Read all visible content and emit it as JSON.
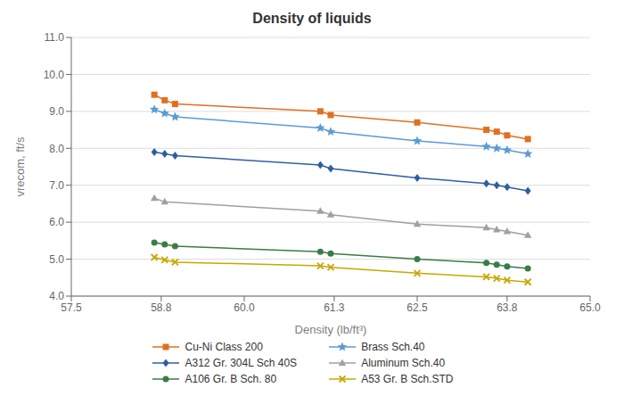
{
  "chart_data": {
    "type": "line",
    "title": "Density of liquids",
    "xlabel": "Density (lb/ft³)",
    "ylabel": "vrecom, ft/s",
    "xlim": [
      57.5,
      65.0
    ],
    "ylim": [
      4.0,
      11.0
    ],
    "xticks": [
      57.5,
      58.8,
      {
        "value": 60.0,
        "label": "60.0"
      },
      61.3,
      62.5,
      63.8,
      {
        "value": 65.0,
        "label": "65.0"
      }
    ],
    "yticks": [
      {
        "value": 4.0,
        "label": "4.0"
      },
      {
        "value": 5.0,
        "label": "5.0"
      },
      {
        "value": 6.0,
        "label": "6.0"
      },
      {
        "value": 7.0,
        "label": "7.0"
      },
      {
        "value": 8.0,
        "label": "8.0"
      },
      {
        "value": 9.0,
        "label": "9.0"
      },
      {
        "value": 10.0,
        "label": "10.0"
      },
      {
        "value": 11.0,
        "label": "11.0"
      }
    ],
    "grid": "y",
    "series": [
      {
        "name": "Cu-Ni Class 200",
        "color": "#E07020",
        "marker": "square",
        "line_style": "solid",
        "x": [
          58.7,
          58.85,
          59.0,
          61.1,
          61.25,
          62.5,
          63.5,
          63.65,
          63.8,
          64.1
        ],
        "values": [
          9.45,
          9.3,
          9.2,
          9.0,
          8.9,
          8.7,
          8.5,
          8.45,
          8.35,
          8.25
        ]
      },
      {
        "name": "Brass Sch.40",
        "color": "#5B9BD5",
        "marker": "star",
        "line_style": "solid",
        "x": [
          58.7,
          58.85,
          59.0,
          61.1,
          61.25,
          62.5,
          63.5,
          63.65,
          63.8,
          64.1
        ],
        "values": [
          9.05,
          8.95,
          8.85,
          8.55,
          8.45,
          8.2,
          8.05,
          8.0,
          7.95,
          7.85
        ]
      },
      {
        "name": "A312 Gr. 304L Sch 40S",
        "color": "#2E5FA3",
        "marker": "diamond",
        "line_style": "solid",
        "x": [
          58.7,
          58.85,
          59.0,
          61.1,
          61.25,
          62.5,
          63.5,
          63.65,
          63.8,
          64.1
        ],
        "values": [
          7.9,
          7.85,
          7.8,
          7.55,
          7.45,
          7.2,
          7.05,
          7.0,
          6.95,
          6.85
        ]
      },
      {
        "name": "Aluminum Sch.40",
        "color": "#A0A0A0",
        "marker": "triangle",
        "line_style": "solid",
        "x": [
          58.7,
          58.85,
          61.1,
          61.25,
          62.5,
          63.5,
          63.65,
          63.8,
          64.1
        ],
        "values": [
          6.65,
          6.55,
          6.3,
          6.2,
          5.95,
          5.85,
          5.8,
          5.75,
          5.65
        ]
      },
      {
        "name": "A106 Gr. B Sch. 80",
        "color": "#3A7D44",
        "marker": "circle",
        "line_style": "solid",
        "x": [
          58.7,
          58.85,
          59.0,
          61.1,
          61.25,
          62.5,
          63.5,
          63.65,
          63.8,
          64.1
        ],
        "values": [
          5.45,
          5.4,
          5.35,
          5.2,
          5.15,
          5.0,
          4.9,
          4.85,
          4.8,
          4.75
        ]
      },
      {
        "name": "A53 Gr. B Sch.STD",
        "color": "#C8A800",
        "marker": "x",
        "line_style": "solid",
        "x": [
          58.7,
          58.85,
          59.0,
          61.1,
          61.25,
          62.5,
          63.5,
          63.65,
          63.8,
          64.1
        ],
        "values": [
          5.05,
          4.98,
          4.92,
          4.82,
          4.78,
          4.62,
          4.52,
          4.48,
          4.43,
          4.38
        ]
      }
    ]
  }
}
